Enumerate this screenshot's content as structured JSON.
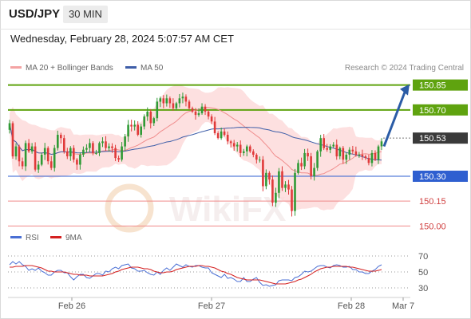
{
  "header": {
    "pair": "USD/JPY",
    "timeframe": "30 MIN"
  },
  "datetime": "Wednesday, February 28, 2024 5:07:57 AM CET",
  "legend": {
    "bollinger": {
      "label": "MA 20 + Bollinger Bands",
      "color": "#f4a3a3"
    },
    "ma50": {
      "label": "MA 50",
      "color": "#3e5ea8"
    }
  },
  "credit": "Research © 2024 Trading Central",
  "watermark": "WikiFX",
  "colors": {
    "resistance": "#5fa30f",
    "support": "#2f5fd0",
    "target": "#f08a8a",
    "arrow": "#2b5ca6",
    "candle_up": "#2f9a35",
    "candle_down": "#e03a3a",
    "band": "#fcd6d6",
    "current": "#3a3a3a"
  },
  "chart_data": [
    {
      "type": "candlestick",
      "title": "USD/JPY",
      "ylim": [
        149.92,
        150.93
      ],
      "x_ticks": [
        "Feb 26",
        "Feb 27",
        "Feb 28",
        "Mar 7"
      ],
      "levels": [
        {
          "value": 150.85,
          "label": "150.85",
          "kind": "resistance"
        },
        {
          "value": 150.7,
          "label": "150.70",
          "kind": "resistance"
        },
        {
          "value": 150.53,
          "label": "150.53",
          "kind": "current"
        },
        {
          "value": 150.3,
          "label": "150.30",
          "kind": "support"
        },
        {
          "value": 150.15,
          "label": "150.15",
          "kind": "target"
        },
        {
          "value": 150.0,
          "label": "150.00",
          "kind": "target"
        }
      ],
      "forecast": {
        "from": 150.48,
        "to": 150.85
      },
      "close": [
        150.62,
        150.42,
        150.48,
        150.39,
        150.36,
        150.5,
        150.45,
        150.48,
        150.34,
        150.37,
        150.43,
        150.47,
        150.39,
        150.35,
        150.47,
        150.55,
        150.53,
        150.45,
        150.42,
        150.47,
        150.4,
        150.37,
        150.43,
        150.46,
        150.47,
        150.5,
        150.44,
        150.44,
        150.5,
        150.51,
        150.47,
        150.48,
        150.47,
        150.41,
        150.4,
        150.48,
        150.54,
        150.61,
        150.6,
        150.61,
        150.55,
        150.6,
        150.66,
        150.69,
        150.62,
        150.65,
        150.75,
        150.77,
        150.74,
        150.77,
        150.74,
        150.71,
        150.74,
        150.77,
        150.78,
        150.75,
        150.71,
        150.69,
        150.67,
        150.68,
        150.72,
        150.69,
        150.66,
        150.63,
        150.56,
        150.53,
        150.57,
        150.55,
        150.51,
        150.5,
        150.48,
        150.49,
        150.44,
        150.45,
        150.48,
        150.45,
        150.43,
        150.4,
        150.4,
        150.24,
        150.32,
        150.28,
        150.14,
        150.2,
        150.33,
        150.23,
        150.25,
        150.22,
        150.09,
        150.32,
        150.38,
        150.36,
        150.44,
        150.42,
        150.3,
        150.35,
        150.45,
        150.53,
        150.47,
        150.46,
        150.48,
        150.49,
        150.42,
        150.47,
        150.4,
        150.43,
        150.46,
        150.45,
        150.43,
        150.43,
        150.42,
        150.41,
        150.38,
        150.44,
        150.4,
        150.48,
        150.51
      ]
    },
    {
      "type": "line",
      "title": "RSI",
      "ylim": [
        20,
        80
      ],
      "y_ticks": [
        70,
        50,
        30
      ],
      "series": [
        {
          "name": "RSI",
          "color": "#4a6fd4",
          "values": [
            59,
            63,
            60,
            63,
            59,
            57,
            52,
            54,
            52,
            55,
            51,
            49,
            46,
            46,
            50,
            52,
            52,
            49,
            49,
            44,
            40,
            44,
            47,
            47,
            43,
            42,
            45,
            48,
            48,
            46,
            51,
            50,
            54,
            56,
            54,
            58,
            59,
            60,
            55,
            54,
            51,
            51,
            52,
            49,
            47,
            46,
            50,
            47,
            52,
            55,
            52,
            56,
            60,
            58,
            56,
            59,
            57,
            56,
            58,
            58,
            56,
            55,
            55,
            49,
            47,
            45,
            43,
            47,
            42,
            43,
            41,
            38,
            38,
            43,
            38,
            38,
            41,
            43,
            37,
            33,
            34,
            32,
            33,
            34,
            39,
            40,
            40,
            40,
            39,
            43,
            44,
            47,
            51,
            50,
            51,
            54,
            57,
            58,
            58,
            56,
            55,
            58,
            59,
            58,
            56,
            56,
            57,
            53,
            53,
            50,
            50,
            48,
            48,
            51,
            53,
            57,
            59
          ]
        },
        {
          "name": "9MA",
          "color": "#d42020",
          "values": [
            56,
            56,
            57,
            57,
            57,
            58,
            58,
            58,
            57,
            56,
            55,
            53,
            51,
            51,
            50,
            50,
            50,
            50,
            49,
            48,
            47,
            47,
            46,
            46,
            46,
            45,
            45,
            45,
            45,
            45,
            46,
            47,
            48,
            50,
            51,
            53,
            54,
            55,
            56,
            56,
            56,
            55,
            54,
            54,
            53,
            51,
            50,
            49,
            49,
            50,
            50,
            51,
            53,
            54,
            55,
            56,
            57,
            57,
            57,
            58,
            58,
            57,
            57,
            56,
            55,
            53,
            51,
            50,
            48,
            47,
            45,
            43,
            42,
            41,
            40,
            40,
            40,
            40,
            40,
            39,
            38,
            37,
            36,
            35,
            35,
            35,
            35,
            36,
            37,
            38,
            40,
            41,
            43,
            45,
            47,
            50,
            52,
            54,
            55,
            56,
            56,
            57,
            57,
            57,
            57,
            57,
            56,
            56,
            55,
            54,
            53,
            52,
            51,
            51,
            51,
            52,
            53
          ]
        }
      ]
    }
  ]
}
